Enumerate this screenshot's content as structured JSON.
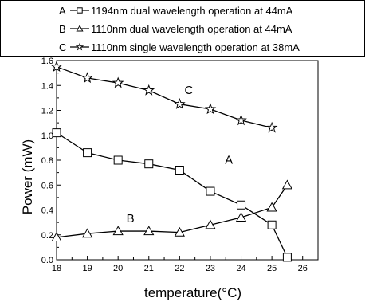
{
  "chart_data": {
    "type": "line",
    "xlabel": "temperature(°C)",
    "ylabel": "Power (mW)",
    "xlim": [
      18,
      26.5
    ],
    "ylim": [
      0,
      1.6
    ],
    "xticks": [
      "18",
      "19",
      "20",
      "21",
      "22",
      "23",
      "24",
      "25",
      "26"
    ],
    "yticks": [
      "0.0",
      "0.2",
      "0.4",
      "0.6",
      "0.8",
      "1.0",
      "1.2",
      "1.4",
      "1.6"
    ],
    "grid": false,
    "legend_placement": "top",
    "series": [
      {
        "name": "1194nm dual wavelength operation at 44mA",
        "legend_letter": "A",
        "curve_label": "A",
        "marker": "square",
        "x": [
          18,
          19,
          20,
          21,
          22,
          23,
          24,
          25,
          25.5
        ],
        "y": [
          1.02,
          0.86,
          0.8,
          0.77,
          0.72,
          0.55,
          0.44,
          0.28,
          0.02
        ]
      },
      {
        "name": "1110nm dual wavelength operation at 44mA",
        "legend_letter": "B",
        "curve_label": "B",
        "marker": "triangle",
        "x": [
          18,
          19,
          20,
          21,
          22,
          23,
          24,
          25,
          25.5
        ],
        "y": [
          0.18,
          0.21,
          0.23,
          0.23,
          0.22,
          0.28,
          0.34,
          0.42,
          0.6
        ]
      },
      {
        "name": "1110nm single wavelength operation at 38mA",
        "legend_letter": "C",
        "curve_label": "C",
        "marker": "star",
        "x": [
          18,
          19,
          20,
          21,
          22,
          23,
          24,
          25
        ],
        "y": [
          1.55,
          1.46,
          1.42,
          1.36,
          1.25,
          1.21,
          1.12,
          1.06
        ]
      }
    ]
  }
}
